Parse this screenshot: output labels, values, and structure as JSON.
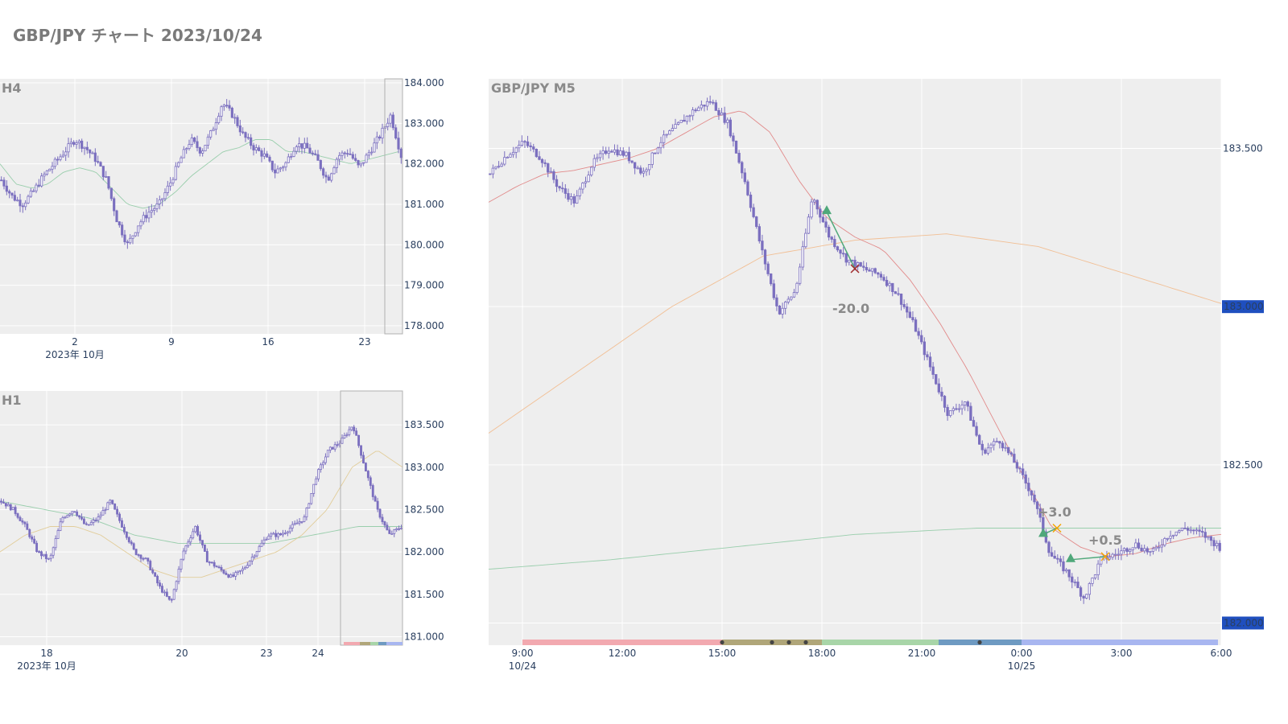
{
  "title": "GBP/JPY チャート 2023/10/24",
  "colors": {
    "panel_bg": "#eeeeee",
    "grid": "#ffffff",
    "candle": "#7b6fbf",
    "ma_short": "#e08080",
    "ma_mid": "#f2b98a",
    "ma_long": "#8fcaa4",
    "axis_text": "#2a3f5f",
    "price_badge": "#1f4fbf",
    "loss": "#a02828",
    "gain": "#f5a300",
    "entry_marker": "#4fa87a"
  },
  "chart_data": [
    {
      "name": "H4",
      "type": "candlestick",
      "panel_label": "H4",
      "yticks": [
        "178.000",
        "179.000",
        "180.000",
        "181.000",
        "182.000",
        "183.000",
        "184.000"
      ],
      "ylim": [
        177.8,
        184.1
      ],
      "xticks": [
        "2",
        "9",
        "16",
        "23"
      ],
      "x_sublabel": "2023年 10月",
      "close_path": [
        181.6,
        181.2,
        181.0,
        181.3,
        181.7,
        182.0,
        182.3,
        182.6,
        182.4,
        182.1,
        181.6,
        180.6,
        180.0,
        180.5,
        180.8,
        181.0,
        181.5,
        182.1,
        182.6,
        182.3,
        182.8,
        183.5,
        183.2,
        182.7,
        182.4,
        182.2,
        181.8,
        182.0,
        182.5,
        182.4,
        182.1,
        181.6,
        182.2,
        182.3,
        181.9,
        182.3,
        182.7,
        183.2,
        182.2
      ],
      "ma_path": [
        182.0,
        181.5,
        181.4,
        181.5,
        181.8,
        181.9,
        181.8,
        181.4,
        181.0,
        180.9,
        181.0,
        181.3,
        181.7,
        182.0,
        182.3,
        182.4,
        182.6,
        182.6,
        182.3,
        182.3,
        182.2,
        182.1,
        182.0,
        182.1,
        182.2,
        182.3
      ],
      "highlight_last": true
    },
    {
      "name": "H1",
      "type": "candlestick",
      "panel_label": "H1",
      "yticks": [
        "181.000",
        "181.500",
        "182.000",
        "182.500",
        "183.000",
        "183.500"
      ],
      "ylim": [
        180.9,
        183.9
      ],
      "xticks": [
        "18",
        "20",
        "23",
        "24"
      ],
      "x_sublabel": "2023年 10月",
      "close_path": [
        182.6,
        182.5,
        182.3,
        182.0,
        181.9,
        182.4,
        182.5,
        182.3,
        182.4,
        182.6,
        182.3,
        182.0,
        181.9,
        181.6,
        181.4,
        182.0,
        182.3,
        181.9,
        181.8,
        181.7,
        181.8,
        182.0,
        182.2,
        182.2,
        182.3,
        182.4,
        182.9,
        183.2,
        183.3,
        183.5,
        183.0,
        182.5,
        182.2,
        182.3
      ],
      "ma_short_path": [
        182.0,
        182.2,
        182.3,
        182.3,
        182.2,
        182.0,
        181.8,
        181.7,
        181.7,
        181.8,
        181.9,
        182.0,
        182.2,
        182.5,
        183.0,
        183.2,
        183.0
      ],
      "ma_long_path": [
        182.6,
        182.5,
        182.4,
        182.2,
        182.1,
        182.1,
        182.1,
        182.2,
        182.3,
        182.3
      ],
      "highlight_last": true
    },
    {
      "name": "M5",
      "type": "candlestick",
      "panel_label": "GBP/JPY M5",
      "yticks": [
        "182.000",
        "182.500",
        "183.000",
        "183.500"
      ],
      "ylim": [
        181.93,
        183.72
      ],
      "price_badges": [
        "183.000",
        "182.000"
      ],
      "xticks": [
        {
          "label": "9:00",
          "sub": "10/24"
        },
        {
          "label": "12:00",
          "sub": ""
        },
        {
          "label": "15:00",
          "sub": ""
        },
        {
          "label": "18:00",
          "sub": ""
        },
        {
          "label": "21:00",
          "sub": ""
        },
        {
          "label": "0:00",
          "sub": "10/25"
        },
        {
          "label": "3:00",
          "sub": ""
        },
        {
          "label": "6:00",
          "sub": ""
        }
      ],
      "close_path": [
        183.42,
        183.48,
        183.52,
        183.47,
        183.38,
        183.33,
        183.45,
        183.5,
        183.48,
        183.42,
        183.52,
        183.57,
        183.62,
        183.65,
        183.58,
        183.4,
        183.18,
        182.98,
        183.05,
        183.35,
        183.22,
        183.15,
        183.12,
        183.1,
        183.04,
        182.94,
        182.8,
        182.66,
        182.7,
        182.54,
        182.58,
        182.5,
        182.4,
        182.22,
        182.16,
        182.08,
        182.2,
        182.22,
        182.25,
        182.22,
        182.28,
        182.3,
        182.28,
        182.24
      ],
      "ma_short_path": [
        183.33,
        183.38,
        183.42,
        183.43,
        183.45,
        183.47,
        183.5,
        183.55,
        183.6,
        183.62,
        183.55,
        183.4,
        183.28,
        183.22,
        183.18,
        183.08,
        182.95,
        182.8,
        182.63,
        182.46,
        182.3,
        182.24,
        182.21,
        182.22,
        182.25,
        182.27,
        182.28
      ],
      "ma_mid_path": [
        182.6,
        182.8,
        183.0,
        183.16,
        183.21,
        183.23,
        183.19,
        183.1,
        183.01
      ],
      "ma_long_path": [
        182.17,
        182.2,
        182.24,
        182.28,
        182.3,
        182.3,
        182.3
      ],
      "trades": [
        {
          "label": "-20.0",
          "result": "loss",
          "entry": 183.3,
          "exit": 183.12
        },
        {
          "label": "+3.0",
          "result": "gain",
          "entry": 182.28,
          "exit": 182.3
        },
        {
          "label": "+0.5",
          "result": "gain",
          "entry": 182.2,
          "exit": 182.21
        }
      ],
      "sessions": [
        "#f2a9b0",
        "#b0a679",
        "#a8d5a8",
        "#6e9ac2",
        "#a8b6f0"
      ]
    }
  ]
}
